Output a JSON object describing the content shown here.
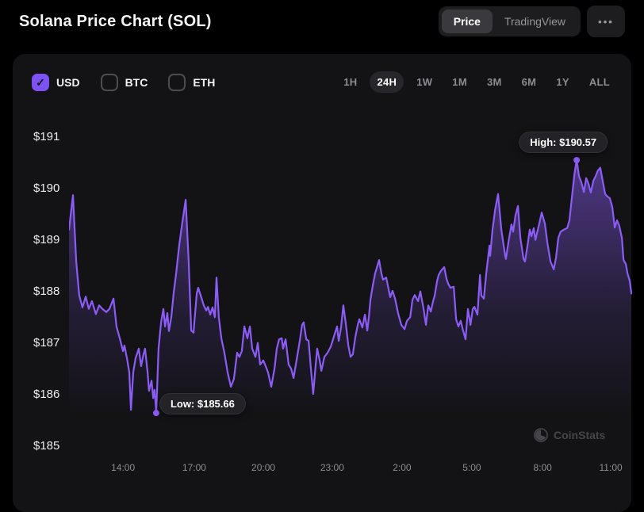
{
  "header": {
    "title": "Solana Price Chart (SOL)",
    "view_toggle": [
      {
        "label": "Price",
        "active": true
      },
      {
        "label": "TradingView",
        "active": false
      }
    ],
    "more_icon": "•••"
  },
  "controls": {
    "currencies": [
      {
        "label": "USD",
        "checked": true
      },
      {
        "label": "BTC",
        "checked": false
      },
      {
        "label": "ETH",
        "checked": false
      }
    ],
    "ranges": [
      {
        "label": "1H",
        "active": false
      },
      {
        "label": "24H",
        "active": true
      },
      {
        "label": "1W",
        "active": false
      },
      {
        "label": "1M",
        "active": false
      },
      {
        "label": "3M",
        "active": false
      },
      {
        "label": "6M",
        "active": false
      },
      {
        "label": "1Y",
        "active": false
      },
      {
        "label": "ALL",
        "active": false
      }
    ]
  },
  "watermark": {
    "label": "CoinStats",
    "icon": "coinstats-pie-logo"
  },
  "chart_data": {
    "type": "area",
    "title": "Solana Price Chart (SOL)",
    "unit": "USD",
    "selected_range": "24H",
    "line_color": "#8b5cf6",
    "fill_color": "#8b5cf6",
    "grid": false,
    "t_max": 24.28,
    "price_top": 191,
    "price_bottom": 185,
    "high": {
      "t": 21.89,
      "price": 190.57,
      "label": "High: $190.57"
    },
    "low": {
      "t": 3.76,
      "price": 185.66,
      "label": "Low: $185.66"
    },
    "y_ticks": [
      {
        "price": 191,
        "label": "$191"
      },
      {
        "price": 190,
        "label": "$190"
      },
      {
        "price": 189,
        "label": "$189"
      },
      {
        "price": 188,
        "label": "$188"
      },
      {
        "price": 187,
        "label": "$187"
      },
      {
        "price": 186,
        "label": "$186"
      },
      {
        "price": 185,
        "label": "$185"
      }
    ],
    "x_ticks": [
      {
        "t": 2.33,
        "label": "14:00"
      },
      {
        "t": 5.4,
        "label": "17:00"
      },
      {
        "t": 8.38,
        "label": "20:00"
      },
      {
        "t": 11.35,
        "label": "23:00"
      },
      {
        "t": 14.36,
        "label": "2:00"
      },
      {
        "t": 17.37,
        "label": "5:00"
      },
      {
        "t": 20.42,
        "label": "8:00"
      },
      {
        "t": 23.36,
        "label": "11:00"
      }
    ],
    "points": [
      [
        0,
        189.22
      ],
      [
        0.17,
        189.89
      ],
      [
        0.31,
        188.6
      ],
      [
        0.44,
        187.94
      ],
      [
        0.58,
        187.71
      ],
      [
        0.72,
        187.92
      ],
      [
        0.85,
        187.68
      ],
      [
        0.99,
        187.83
      ],
      [
        1.16,
        187.58
      ],
      [
        1.3,
        187.75
      ],
      [
        1.44,
        187.68
      ],
      [
        1.61,
        187.62
      ],
      [
        1.74,
        187.68
      ],
      [
        1.92,
        187.88
      ],
      [
        2.05,
        187.34
      ],
      [
        2.22,
        187.06
      ],
      [
        2.33,
        186.86
      ],
      [
        2.39,
        186.97
      ],
      [
        2.5,
        186.72
      ],
      [
        2.6,
        186.45
      ],
      [
        2.67,
        185.72
      ],
      [
        2.77,
        186.45
      ],
      [
        2.87,
        186.72
      ],
      [
        3.01,
        186.91
      ],
      [
        3.11,
        186.57
      ],
      [
        3.21,
        186.8
      ],
      [
        3.28,
        186.91
      ],
      [
        3.39,
        186.45
      ],
      [
        3.45,
        186.09
      ],
      [
        3.56,
        186.29
      ],
      [
        3.63,
        185.95
      ],
      [
        3.69,
        186.11
      ],
      [
        3.76,
        185.66
      ],
      [
        3.86,
        186.91
      ],
      [
        3.97,
        187.42
      ],
      [
        4.07,
        187.68
      ],
      [
        4.14,
        187.34
      ],
      [
        4.24,
        187.6
      ],
      [
        4.31,
        187.25
      ],
      [
        4.41,
        187.52
      ],
      [
        4.51,
        187.98
      ],
      [
        4.62,
        188.37
      ],
      [
        4.75,
        188.91
      ],
      [
        4.89,
        189.37
      ],
      [
        5.03,
        189.8
      ],
      [
        5.16,
        188.6
      ],
      [
        5.27,
        187.26
      ],
      [
        5.37,
        187.22
      ],
      [
        5.51,
        187.98
      ],
      [
        5.57,
        188.09
      ],
      [
        5.68,
        187.94
      ],
      [
        5.81,
        187.75
      ],
      [
        5.92,
        187.65
      ],
      [
        5.99,
        187.72
      ],
      [
        6.09,
        187.57
      ],
      [
        6.19,
        187.71
      ],
      [
        6.29,
        187.52
      ],
      [
        6.36,
        188.29
      ],
      [
        6.46,
        187.52
      ],
      [
        6.57,
        187.11
      ],
      [
        6.7,
        186.83
      ],
      [
        6.84,
        186.45
      ],
      [
        6.98,
        186.17
      ],
      [
        7.11,
        186.32
      ],
      [
        7.25,
        186.83
      ],
      [
        7.35,
        186.75
      ],
      [
        7.45,
        186.86
      ],
      [
        7.56,
        187.34
      ],
      [
        7.69,
        187.11
      ],
      [
        7.8,
        187.34
      ],
      [
        7.9,
        186.91
      ],
      [
        8.04,
        186.75
      ],
      [
        8.14,
        187.02
      ],
      [
        8.24,
        186.6
      ],
      [
        8.38,
        186.68
      ],
      [
        8.48,
        186.57
      ],
      [
        8.58,
        186.45
      ],
      [
        8.72,
        186.17
      ],
      [
        8.86,
        186.52
      ],
      [
        8.96,
        186.91
      ],
      [
        9.06,
        187.09
      ],
      [
        9.17,
        187.11
      ],
      [
        9.23,
        186.91
      ],
      [
        9.34,
        187.09
      ],
      [
        9.47,
        186.6
      ],
      [
        9.58,
        186.52
      ],
      [
        9.68,
        186.34
      ],
      [
        9.81,
        186.68
      ],
      [
        9.95,
        187.06
      ],
      [
        10.05,
        187.37
      ],
      [
        10.12,
        187.42
      ],
      [
        10.23,
        187.09
      ],
      [
        10.33,
        187.06
      ],
      [
        10.43,
        186.52
      ],
      [
        10.53,
        186.03
      ],
      [
        10.64,
        186.6
      ],
      [
        10.7,
        186.91
      ],
      [
        10.81,
        186.68
      ],
      [
        10.88,
        186.48
      ],
      [
        11.01,
        186.75
      ],
      [
        11.15,
        186.83
      ],
      [
        11.29,
        186.95
      ],
      [
        11.42,
        187.14
      ],
      [
        11.56,
        187.34
      ],
      [
        11.63,
        187.06
      ],
      [
        11.73,
        187.32
      ],
      [
        11.83,
        187.75
      ],
      [
        11.94,
        187.37
      ],
      [
        12.04,
        186.98
      ],
      [
        12.14,
        186.75
      ],
      [
        12.24,
        186.8
      ],
      [
        12.35,
        187.14
      ],
      [
        12.45,
        187.37
      ],
      [
        12.52,
        187.48
      ],
      [
        12.65,
        187.32
      ],
      [
        12.76,
        187.57
      ],
      [
        12.86,
        187.26
      ],
      [
        12.93,
        187.52
      ],
      [
        13.0,
        187.86
      ],
      [
        13.1,
        188.14
      ],
      [
        13.2,
        188.37
      ],
      [
        13.37,
        188.63
      ],
      [
        13.47,
        188.37
      ],
      [
        13.54,
        188.25
      ],
      [
        13.68,
        188.29
      ],
      [
        13.78,
        188.06
      ],
      [
        13.85,
        187.91
      ],
      [
        13.95,
        188.03
      ],
      [
        14.06,
        187.88
      ],
      [
        14.19,
        187.6
      ],
      [
        14.33,
        187.37
      ],
      [
        14.47,
        187.29
      ],
      [
        14.57,
        187.45
      ],
      [
        14.71,
        187.52
      ],
      [
        14.81,
        187.86
      ],
      [
        14.91,
        187.95
      ],
      [
        15.05,
        187.83
      ],
      [
        15.15,
        188.02
      ],
      [
        15.29,
        187.68
      ],
      [
        15.39,
        187.37
      ],
      [
        15.49,
        187.75
      ],
      [
        15.6,
        187.63
      ],
      [
        15.7,
        187.83
      ],
      [
        15.77,
        187.94
      ],
      [
        15.87,
        188.22
      ],
      [
        15.94,
        188.34
      ],
      [
        16.04,
        188.42
      ],
      [
        16.18,
        188.49
      ],
      [
        16.28,
        188.26
      ],
      [
        16.35,
        188.17
      ],
      [
        16.45,
        188.09
      ],
      [
        16.59,
        188.11
      ],
      [
        16.69,
        187.48
      ],
      [
        16.79,
        187.34
      ],
      [
        16.89,
        187.45
      ],
      [
        17.0,
        187.25
      ],
      [
        17.1,
        187.09
      ],
      [
        17.2,
        187.68
      ],
      [
        17.31,
        187.37
      ],
      [
        17.41,
        187.68
      ],
      [
        17.48,
        187.72
      ],
      [
        17.61,
        187.57
      ],
      [
        17.72,
        188.34
      ],
      [
        17.78,
        187.94
      ],
      [
        17.89,
        187.88
      ],
      [
        17.99,
        188.37
      ],
      [
        18.13,
        188.91
      ],
      [
        18.16,
        188.71
      ],
      [
        18.26,
        189.22
      ],
      [
        18.37,
        189.6
      ],
      [
        18.5,
        189.91
      ],
      [
        18.64,
        189.22
      ],
      [
        18.81,
        188.71
      ],
      [
        18.84,
        188.65
      ],
      [
        18.95,
        188.98
      ],
      [
        19.08,
        189.32
      ],
      [
        19.15,
        189.18
      ],
      [
        19.25,
        189.49
      ],
      [
        19.36,
        189.68
      ],
      [
        19.46,
        189.06
      ],
      [
        19.6,
        188.65
      ],
      [
        19.66,
        188.6
      ],
      [
        19.77,
        188.91
      ],
      [
        19.87,
        189.22
      ],
      [
        19.94,
        189.09
      ],
      [
        20.04,
        189.25
      ],
      [
        20.11,
        189.02
      ],
      [
        20.25,
        189.29
      ],
      [
        20.38,
        189.55
      ],
      [
        20.52,
        189.34
      ],
      [
        20.62,
        188.98
      ],
      [
        20.76,
        188.6
      ],
      [
        20.9,
        188.45
      ],
      [
        21.0,
        188.68
      ],
      [
        21.1,
        189.06
      ],
      [
        21.2,
        189.18
      ],
      [
        21.34,
        189.22
      ],
      [
        21.48,
        189.25
      ],
      [
        21.58,
        189.4
      ],
      [
        21.68,
        189.83
      ],
      [
        21.79,
        190.29
      ],
      [
        21.89,
        190.57
      ],
      [
        21.99,
        190.26
      ],
      [
        22.09,
        190.14
      ],
      [
        22.2,
        189.95
      ],
      [
        22.3,
        190.22
      ],
      [
        22.4,
        190.11
      ],
      [
        22.5,
        189.94
      ],
      [
        22.61,
        190.17
      ],
      [
        22.71,
        190.26
      ],
      [
        22.81,
        190.37
      ],
      [
        22.91,
        190.42
      ],
      [
        23.02,
        190.14
      ],
      [
        23.12,
        189.91
      ],
      [
        23.22,
        189.86
      ],
      [
        23.32,
        189.83
      ],
      [
        23.43,
        189.65
      ],
      [
        23.53,
        189.26
      ],
      [
        23.63,
        189.4
      ],
      [
        23.73,
        189.29
      ],
      [
        23.84,
        189.06
      ],
      [
        23.91,
        188.63
      ],
      [
        24.01,
        188.55
      ],
      [
        24.08,
        188.37
      ],
      [
        24.18,
        188.22
      ],
      [
        24.25,
        187.98
      ]
    ]
  }
}
